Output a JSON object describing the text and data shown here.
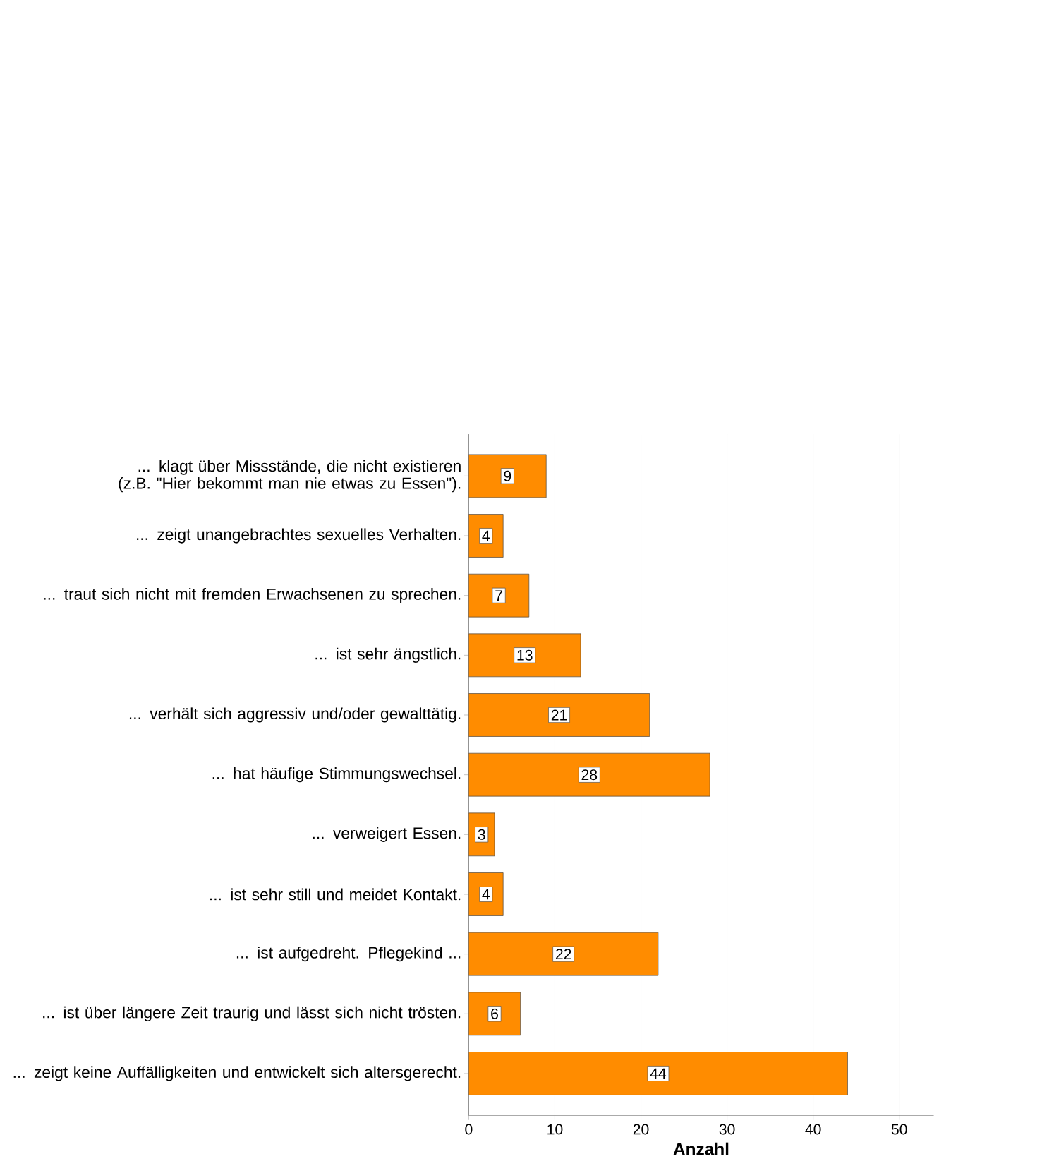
{
  "chart_data": {
    "type": "bar",
    "orientation": "horizontal",
    "xlabel": "Anzahl",
    "categories": [
      "... klagt über Missstände, die nicht existieren (z.B. \"Hier bekommt man nie etwas zu Essen\").",
      "... zeigt unangebrachtes sexuelles Verhalten.",
      "... traut sich nicht mit fremden Erwachsenen zu sprechen.",
      "... ist sehr ängstlich.",
      "... verhält sich aggressiv und/oder gewalttätig.",
      "... hat häufige Stimmungswechsel.",
      "... verweigert Essen.",
      "... ist sehr still und meidet Kontakt.",
      "... ist aufgedreht. Pflegekind ...",
      "... ist über längere Zeit traurig und lässt sich nicht trösten.",
      "... zeigt keine Auffälligkeiten und entwickelt sich altersgerecht."
    ],
    "values": [
      9,
      4,
      7,
      13,
      21,
      28,
      3,
      4,
      22,
      6,
      44
    ],
    "color": "#ff8c00",
    "xlim": [
      0,
      54
    ],
    "xticks": [
      0,
      10,
      20,
      30,
      40,
      50
    ],
    "grid": "x",
    "data_labels": true
  }
}
